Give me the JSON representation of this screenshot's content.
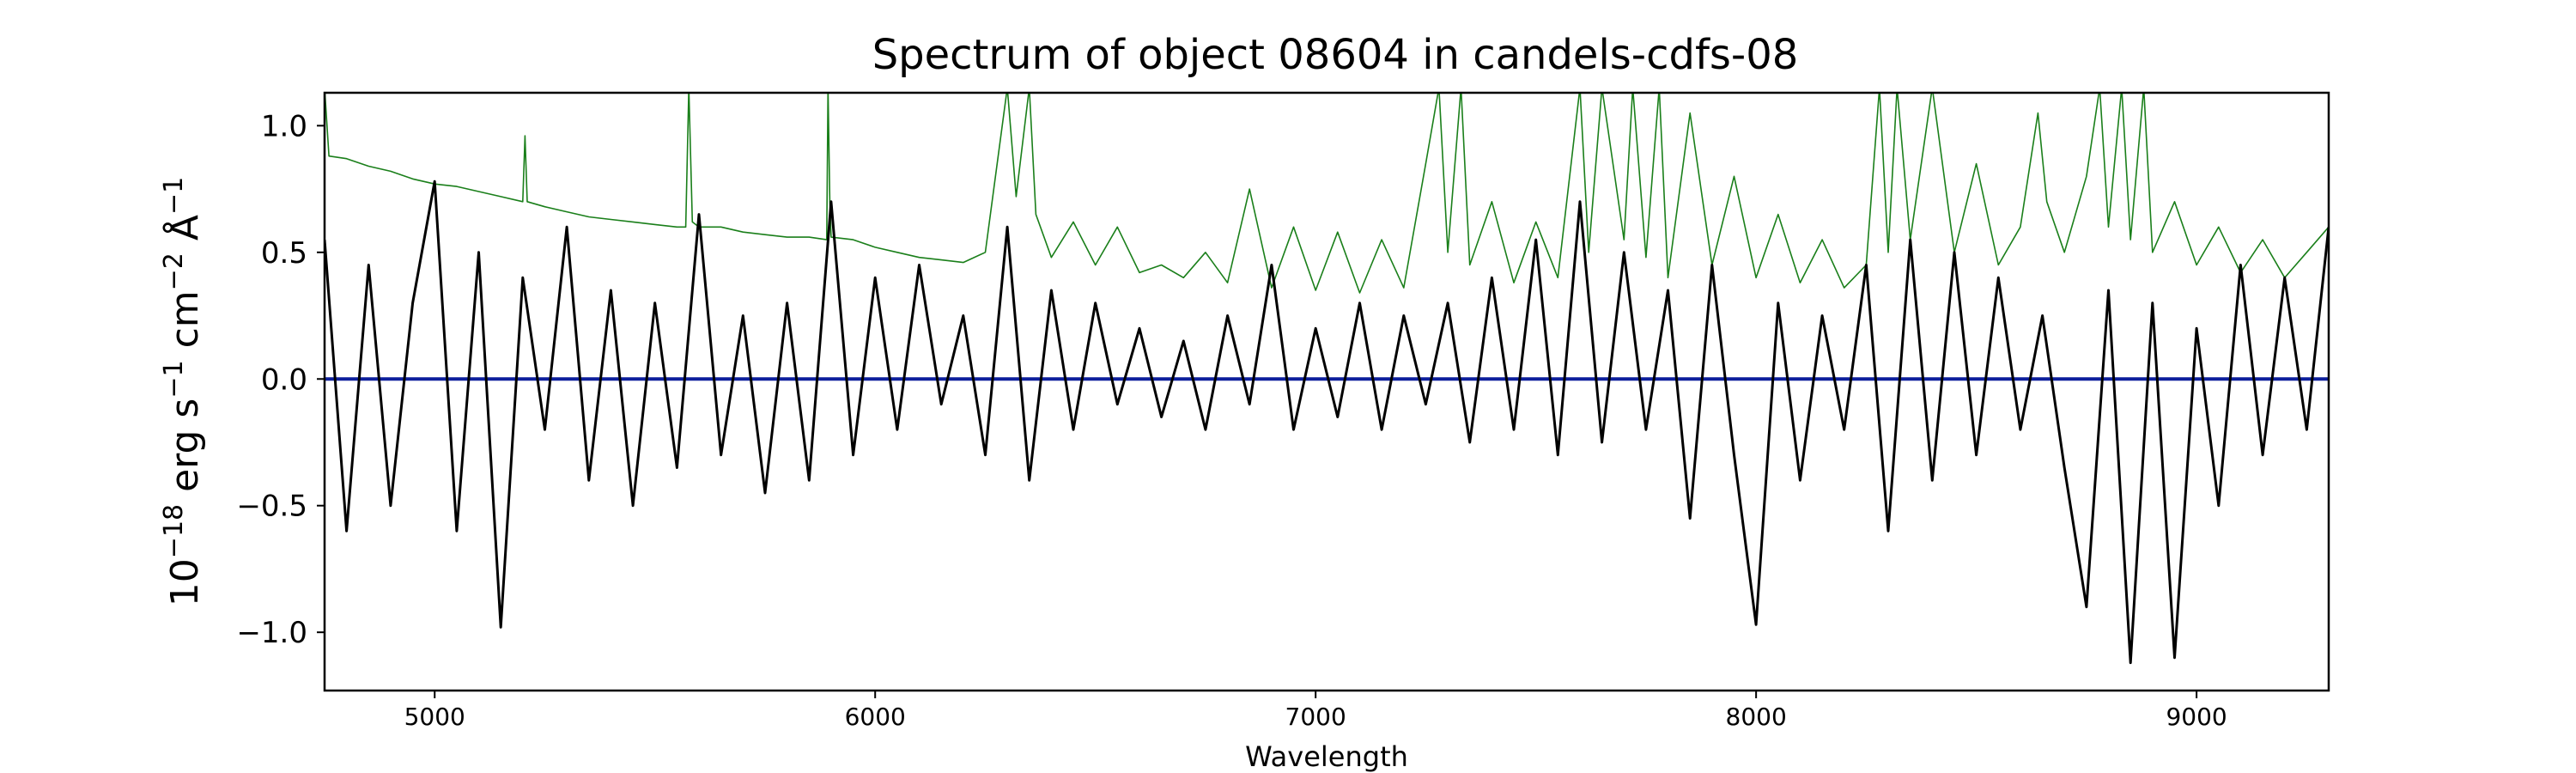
{
  "chart_data": {
    "type": "line",
    "title": "Spectrum of object 08604 in candels-cdfs-08",
    "xlabel": "Wavelength",
    "ylabel_parts": {
      "base": "10",
      "exp": "−18",
      "erg": " erg s",
      "s_exp": "−1",
      "cm": " cm",
      "cm_exp": "−2",
      "angstrom": " Å",
      "a_exp": "−1"
    },
    "xlim": [
      4750,
      9300
    ],
    "ylim": [
      -1.23,
      1.13
    ],
    "x_ticks": [
      5000,
      6000,
      7000,
      8000,
      9000
    ],
    "x_tick_labels": [
      "5000",
      "6000",
      "7000",
      "8000",
      "9000"
    ],
    "y_ticks": [
      -1.0,
      -0.5,
      0.0,
      0.5,
      1.0
    ],
    "y_tick_labels": [
      "−1.0",
      "−0.5",
      "0.0",
      "0.5",
      "1.0"
    ],
    "grid": false,
    "legend": "none",
    "colors": {
      "flux": "#000000",
      "noise": "#1a7f1a",
      "model": "#0d1f9c"
    },
    "series": [
      {
        "id": "flux",
        "style": "black-thick",
        "x": [
          4750,
          4800,
          4850,
          4900,
          4950,
          5000,
          5050,
          5100,
          5150,
          5200,
          5250,
          5300,
          5350,
          5400,
          5450,
          5500,
          5550,
          5600,
          5650,
          5700,
          5750,
          5800,
          5850,
          5900,
          5950,
          6000,
          6050,
          6100,
          6150,
          6200,
          6250,
          6300,
          6350,
          6400,
          6450,
          6500,
          6550,
          6600,
          6650,
          6700,
          6750,
          6800,
          6850,
          6900,
          6950,
          7000,
          7050,
          7100,
          7150,
          7200,
          7250,
          7300,
          7350,
          7400,
          7450,
          7500,
          7550,
          7600,
          7650,
          7700,
          7750,
          7800,
          7850,
          7900,
          7950,
          8000,
          8050,
          8100,
          8150,
          8200,
          8250,
          8300,
          8350,
          8400,
          8450,
          8500,
          8550,
          8600,
          8650,
          8700,
          8750,
          8800,
          8850,
          8900,
          8950,
          9000,
          9050,
          9100,
          9150,
          9200,
          9250,
          9300
        ],
        "y": [
          0.55,
          -0.6,
          0.45,
          -0.5,
          0.3,
          0.78,
          -0.6,
          0.5,
          -0.98,
          0.4,
          -0.2,
          0.6,
          -0.4,
          0.35,
          -0.5,
          0.3,
          -0.35,
          0.65,
          -0.3,
          0.25,
          -0.45,
          0.3,
          -0.4,
          0.7,
          -0.3,
          0.4,
          -0.2,
          0.45,
          -0.1,
          0.25,
          -0.3,
          0.6,
          -0.4,
          0.35,
          -0.2,
          0.3,
          -0.1,
          0.2,
          -0.15,
          0.15,
          -0.2,
          0.25,
          -0.1,
          0.45,
          -0.2,
          0.2,
          -0.15,
          0.3,
          -0.2,
          0.25,
          -0.1,
          0.3,
          -0.25,
          0.4,
          -0.2,
          0.55,
          -0.3,
          0.7,
          -0.25,
          0.5,
          -0.2,
          0.35,
          -0.55,
          0.45,
          -0.3,
          -0.97,
          0.3,
          -0.4,
          0.25,
          -0.2,
          0.45,
          -0.6,
          0.55,
          -0.4,
          0.5,
          -0.3,
          0.4,
          -0.2,
          0.25,
          -0.35,
          -0.9,
          0.35,
          -1.12,
          0.3,
          -1.1,
          0.2,
          -0.5,
          0.45,
          -0.3,
          0.4,
          -0.2,
          0.6
        ]
      },
      {
        "id": "noise",
        "style": "green-thin",
        "x": [
          4750,
          4760,
          4800,
          4850,
          4900,
          4950,
          5000,
          5050,
          5100,
          5150,
          5200,
          5205,
          5210,
          5250,
          5300,
          5350,
          5400,
          5450,
          5500,
          5550,
          5570,
          5577,
          5585,
          5600,
          5650,
          5700,
          5750,
          5800,
          5850,
          5890,
          5893,
          5897,
          5900,
          5950,
          6000,
          6050,
          6100,
          6150,
          6200,
          6250,
          6300,
          6320,
          6350,
          6365,
          6400,
          6450,
          6500,
          6550,
          6600,
          6650,
          6700,
          6750,
          6800,
          6850,
          6900,
          6950,
          7000,
          7050,
          7100,
          7150,
          7200,
          7250,
          7280,
          7300,
          7330,
          7350,
          7400,
          7450,
          7500,
          7550,
          7600,
          7620,
          7650,
          7700,
          7720,
          7750,
          7780,
          7800,
          7850,
          7900,
          7950,
          8000,
          8050,
          8100,
          8150,
          8200,
          8250,
          8280,
          8300,
          8320,
          8350,
          8400,
          8450,
          8500,
          8550,
          8600,
          8640,
          8660,
          8700,
          8750,
          8780,
          8800,
          8830,
          8850,
          8880,
          8900,
          8950,
          9000,
          9050,
          9100,
          9150,
          9200,
          9250,
          9300
        ],
        "y": [
          1.15,
          0.88,
          0.87,
          0.84,
          0.82,
          0.79,
          0.77,
          0.76,
          0.74,
          0.72,
          0.7,
          0.96,
          0.7,
          0.68,
          0.66,
          0.64,
          0.63,
          0.62,
          0.61,
          0.6,
          0.6,
          1.15,
          0.62,
          0.6,
          0.6,
          0.58,
          0.57,
          0.56,
          0.56,
          0.55,
          1.15,
          0.7,
          0.56,
          0.55,
          0.52,
          0.5,
          0.48,
          0.47,
          0.46,
          0.5,
          1.15,
          0.72,
          1.15,
          0.65,
          0.48,
          0.62,
          0.45,
          0.6,
          0.42,
          0.45,
          0.4,
          0.5,
          0.38,
          0.75,
          0.36,
          0.6,
          0.35,
          0.58,
          0.34,
          0.55,
          0.36,
          0.85,
          1.15,
          0.5,
          1.15,
          0.45,
          0.7,
          0.38,
          0.62,
          0.4,
          1.15,
          0.5,
          1.15,
          0.55,
          1.15,
          0.48,
          1.15,
          0.4,
          1.05,
          0.45,
          0.8,
          0.4,
          0.65,
          0.38,
          0.55,
          0.36,
          0.45,
          1.15,
          0.5,
          1.15,
          0.55,
          1.15,
          0.5,
          0.85,
          0.45,
          0.6,
          1.05,
          0.7,
          0.5,
          0.8,
          1.15,
          0.6,
          1.15,
          0.55,
          1.15,
          0.5,
          0.7,
          0.45,
          0.6,
          0.42,
          0.55,
          0.4,
          0.5,
          0.6
        ]
      },
      {
        "id": "model",
        "style": "blue-flat",
        "x": [
          4750,
          9300
        ],
        "y": [
          0.0,
          0.0
        ]
      }
    ]
  }
}
